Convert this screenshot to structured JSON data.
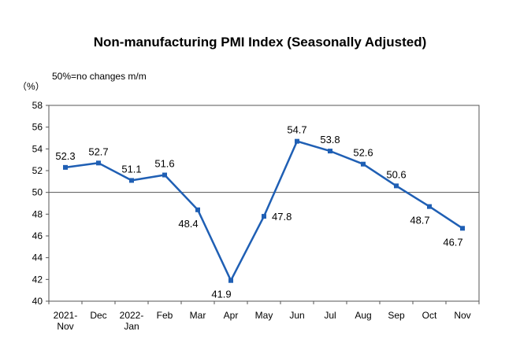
{
  "chart_data": {
    "type": "line",
    "title": "Non-manufacturing PMI Index (Seasonally Adjusted)",
    "ylabel": "（%）",
    "annotation": "50%=no changes m/m",
    "ylim": [
      40,
      58
    ],
    "yticks": [
      "40",
      "42",
      "44",
      "46",
      "48",
      "50",
      "52",
      "54",
      "56",
      "58"
    ],
    "reference_line": 50,
    "categories": [
      [
        "2021-",
        "Nov"
      ],
      [
        "Dec"
      ],
      [
        "2022-",
        "Jan"
      ],
      [
        "Feb"
      ],
      [
        "Mar"
      ],
      [
        "Apr"
      ],
      [
        "May"
      ],
      [
        "Jun"
      ],
      [
        "Jul"
      ],
      [
        "Aug"
      ],
      [
        "Sep"
      ],
      [
        "Oct"
      ],
      [
        "Nov"
      ]
    ],
    "series": [
      {
        "values": [
          52.3,
          52.7,
          51.1,
          51.6,
          48.4,
          41.9,
          47.8,
          54.7,
          53.8,
          52.6,
          50.6,
          48.7,
          46.7
        ],
        "labels": [
          "52.3",
          "52.7",
          "51.1",
          "51.6",
          "48.4",
          "41.9",
          "47.8",
          "54.7",
          "53.8",
          "52.6",
          "50.6",
          "48.7",
          "46.7"
        ],
        "color": "#1f5fb4",
        "label_positions": [
          "above",
          "above",
          "above",
          "above",
          "below",
          "below",
          "right",
          "above",
          "above",
          "above",
          "above",
          "below",
          "below"
        ]
      }
    ],
    "grid": false,
    "legend": "none"
  }
}
